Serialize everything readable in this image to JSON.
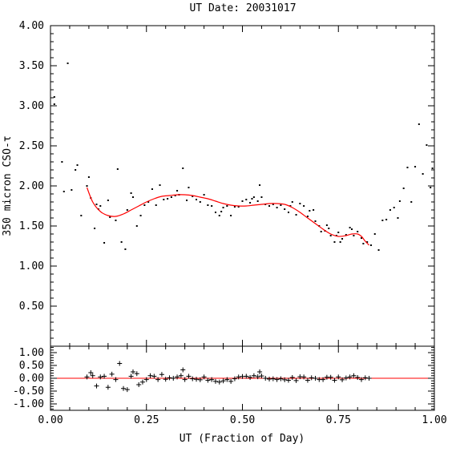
{
  "chart_data": [
    {
      "type": "scatter",
      "title": "UT Date: 20031017",
      "ylabel": "350 micron CSO-τ",
      "xlim": [
        0,
        1
      ],
      "ylim": [
        0,
        4
      ],
      "yticks": [
        "0.50",
        "1.00",
        "1.50",
        "2.00",
        "2.50",
        "3.00",
        "3.50",
        "4.00"
      ],
      "colors": {
        "points": "#000000",
        "fit": "#ff0000"
      },
      "points": [
        [
          0.01,
          3.11
        ],
        [
          0.01,
          3.02
        ],
        [
          0.03,
          2.3
        ],
        [
          0.035,
          1.93
        ],
        [
          0.045,
          3.53
        ],
        [
          0.055,
          1.95
        ],
        [
          0.065,
          2.2
        ],
        [
          0.07,
          2.26
        ],
        [
          0.08,
          1.63
        ],
        [
          0.095,
          2.0
        ],
        [
          0.1,
          2.11
        ],
        [
          0.105,
          1.85
        ],
        [
          0.115,
          1.47
        ],
        [
          0.12,
          1.77
        ],
        [
          0.125,
          1.71
        ],
        [
          0.13,
          1.75
        ],
        [
          0.14,
          1.29
        ],
        [
          0.15,
          1.82
        ],
        [
          0.155,
          1.61
        ],
        [
          0.17,
          1.57
        ],
        [
          0.175,
          2.21
        ],
        [
          0.185,
          1.3
        ],
        [
          0.195,
          1.21
        ],
        [
          0.2,
          1.7
        ],
        [
          0.21,
          1.91
        ],
        [
          0.215,
          1.86
        ],
        [
          0.225,
          1.5
        ],
        [
          0.235,
          1.63
        ],
        [
          0.245,
          1.76
        ],
        [
          0.255,
          1.8
        ],
        [
          0.265,
          1.96
        ],
        [
          0.275,
          1.76
        ],
        [
          0.285,
          2.01
        ],
        [
          0.295,
          1.83
        ],
        [
          0.305,
          1.84
        ],
        [
          0.315,
          1.86
        ],
        [
          0.325,
          1.88
        ],
        [
          0.33,
          1.94
        ],
        [
          0.335,
          1.89
        ],
        [
          0.345,
          2.22
        ],
        [
          0.355,
          1.82
        ],
        [
          0.36,
          1.98
        ],
        [
          0.37,
          1.87
        ],
        [
          0.38,
          1.83
        ],
        [
          0.39,
          1.8
        ],
        [
          0.4,
          1.89
        ],
        [
          0.41,
          1.76
        ],
        [
          0.42,
          1.75
        ],
        [
          0.43,
          1.67
        ],
        [
          0.44,
          1.63
        ],
        [
          0.445,
          1.68
        ],
        [
          0.45,
          1.73
        ],
        [
          0.46,
          1.75
        ],
        [
          0.47,
          1.63
        ],
        [
          0.48,
          1.74
        ],
        [
          0.49,
          1.74
        ],
        [
          0.5,
          1.81
        ],
        [
          0.51,
          1.83
        ],
        [
          0.52,
          1.79
        ],
        [
          0.525,
          1.84
        ],
        [
          0.53,
          1.86
        ],
        [
          0.54,
          1.81
        ],
        [
          0.545,
          2.01
        ],
        [
          0.55,
          1.86
        ],
        [
          0.56,
          1.77
        ],
        [
          0.57,
          1.75
        ],
        [
          0.58,
          1.77
        ],
        [
          0.59,
          1.73
        ],
        [
          0.6,
          1.76
        ],
        [
          0.61,
          1.71
        ],
        [
          0.62,
          1.67
        ],
        [
          0.625,
          1.75
        ],
        [
          0.63,
          1.8
        ],
        [
          0.64,
          1.64
        ],
        [
          0.65,
          1.78
        ],
        [
          0.66,
          1.75
        ],
        [
          0.67,
          1.62
        ],
        [
          0.675,
          1.69
        ],
        [
          0.685,
          1.7
        ],
        [
          0.69,
          1.56
        ],
        [
          0.7,
          1.5
        ],
        [
          0.705,
          1.43
        ],
        [
          0.715,
          1.44
        ],
        [
          0.72,
          1.51
        ],
        [
          0.725,
          1.47
        ],
        [
          0.73,
          1.38
        ],
        [
          0.74,
          1.3
        ],
        [
          0.745,
          1.38
        ],
        [
          0.75,
          1.42
        ],
        [
          0.755,
          1.3
        ],
        [
          0.76,
          1.34
        ],
        [
          0.77,
          1.39
        ],
        [
          0.78,
          1.48
        ],
        [
          0.785,
          1.46
        ],
        [
          0.79,
          1.38
        ],
        [
          0.8,
          1.43
        ],
        [
          0.81,
          1.35
        ],
        [
          0.815,
          1.28
        ],
        [
          0.825,
          1.3
        ],
        [
          0.835,
          1.26
        ],
        [
          0.845,
          1.4
        ],
        [
          0.855,
          1.2
        ],
        [
          0.865,
          1.57
        ],
        [
          0.875,
          1.58
        ],
        [
          0.885,
          1.7
        ],
        [
          0.895,
          1.73
        ],
        [
          0.905,
          1.6
        ],
        [
          0.91,
          1.81
        ],
        [
          0.92,
          1.97
        ],
        [
          0.93,
          2.23
        ],
        [
          0.94,
          1.8
        ],
        [
          0.95,
          2.24
        ],
        [
          0.96,
          2.77
        ],
        [
          0.97,
          2.15
        ],
        [
          0.98,
          2.51
        ],
        [
          0.99,
          1.98
        ],
        [
          0.995,
          2.22
        ]
      ],
      "fit": [
        [
          0.095,
          1.98
        ],
        [
          0.11,
          1.8
        ],
        [
          0.13,
          1.68
        ],
        [
          0.15,
          1.63
        ],
        [
          0.17,
          1.62
        ],
        [
          0.19,
          1.65
        ],
        [
          0.21,
          1.7
        ],
        [
          0.23,
          1.75
        ],
        [
          0.25,
          1.8
        ],
        [
          0.27,
          1.84
        ],
        [
          0.29,
          1.87
        ],
        [
          0.31,
          1.88
        ],
        [
          0.33,
          1.89
        ],
        [
          0.35,
          1.89
        ],
        [
          0.37,
          1.88
        ],
        [
          0.39,
          1.86
        ],
        [
          0.41,
          1.84
        ],
        [
          0.43,
          1.81
        ],
        [
          0.45,
          1.78
        ],
        [
          0.47,
          1.76
        ],
        [
          0.49,
          1.75
        ],
        [
          0.51,
          1.75
        ],
        [
          0.53,
          1.76
        ],
        [
          0.55,
          1.77
        ],
        [
          0.57,
          1.78
        ],
        [
          0.59,
          1.78
        ],
        [
          0.61,
          1.77
        ],
        [
          0.63,
          1.73
        ],
        [
          0.65,
          1.67
        ],
        [
          0.67,
          1.6
        ],
        [
          0.69,
          1.53
        ],
        [
          0.71,
          1.46
        ],
        [
          0.73,
          1.4
        ],
        [
          0.75,
          1.37
        ],
        [
          0.77,
          1.38
        ],
        [
          0.785,
          1.4
        ],
        [
          0.8,
          1.4
        ],
        [
          0.81,
          1.37
        ],
        [
          0.82,
          1.31
        ],
        [
          0.83,
          1.26
        ]
      ]
    },
    {
      "type": "scatter",
      "xlabel": "UT (Fraction of Day)",
      "xlim": [
        0,
        1
      ],
      "ylim": [
        -1.25,
        1.25
      ],
      "xticks": [
        "0.00",
        "0.25",
        "0.50",
        "0.75",
        "1.00"
      ],
      "yticks": [
        "-1.00",
        "-0.50",
        "0.00",
        "0.50",
        "1.00"
      ],
      "colors": {
        "points": "#000000",
        "zero_line": "#ff0000"
      },
      "residuals": [
        [
          0.095,
          0.05
        ],
        [
          0.105,
          0.22
        ],
        [
          0.11,
          0.1
        ],
        [
          0.12,
          -0.3
        ],
        [
          0.13,
          0.05
        ],
        [
          0.14,
          0.08
        ],
        [
          0.15,
          -0.35
        ],
        [
          0.16,
          0.16
        ],
        [
          0.17,
          -0.05
        ],
        [
          0.18,
          0.58
        ],
        [
          0.19,
          -0.4
        ],
        [
          0.2,
          -0.44
        ],
        [
          0.21,
          0.08
        ],
        [
          0.215,
          0.25
        ],
        [
          0.225,
          0.18
        ],
        [
          0.23,
          -0.25
        ],
        [
          0.24,
          -0.15
        ],
        [
          0.25,
          -0.05
        ],
        [
          0.26,
          0.1
        ],
        [
          0.27,
          0.08
        ],
        [
          0.28,
          -0.05
        ],
        [
          0.29,
          0.15
        ],
        [
          0.3,
          -0.04
        ],
        [
          0.31,
          0.02
        ],
        [
          0.32,
          0.0
        ],
        [
          0.33,
          0.05
        ],
        [
          0.34,
          0.1
        ],
        [
          0.345,
          0.33
        ],
        [
          0.35,
          -0.05
        ],
        [
          0.36,
          0.08
        ],
        [
          0.37,
          -0.02
        ],
        [
          0.38,
          -0.04
        ],
        [
          0.39,
          -0.06
        ],
        [
          0.4,
          0.05
        ],
        [
          0.41,
          -0.08
        ],
        [
          0.42,
          -0.05
        ],
        [
          0.43,
          -0.12
        ],
        [
          0.44,
          -0.15
        ],
        [
          0.45,
          -0.1
        ],
        [
          0.46,
          -0.05
        ],
        [
          0.47,
          -0.12
        ],
        [
          0.48,
          -0.02
        ],
        [
          0.49,
          0.05
        ],
        [
          0.5,
          0.07
        ],
        [
          0.51,
          0.08
        ],
        [
          0.52,
          0.03
        ],
        [
          0.53,
          0.1
        ],
        [
          0.54,
          0.06
        ],
        [
          0.545,
          0.25
        ],
        [
          0.55,
          0.09
        ],
        [
          0.56,
          0.0
        ],
        [
          0.57,
          -0.03
        ],
        [
          0.58,
          -0.02
        ],
        [
          0.59,
          -0.05
        ],
        [
          0.6,
          -0.02
        ],
        [
          0.61,
          -0.06
        ],
        [
          0.62,
          -0.08
        ],
        [
          0.63,
          0.03
        ],
        [
          0.64,
          -0.09
        ],
        [
          0.65,
          0.06
        ],
        [
          0.66,
          0.05
        ],
        [
          0.67,
          -0.08
        ],
        [
          0.68,
          0.02
        ],
        [
          0.69,
          0.0
        ],
        [
          0.7,
          -0.05
        ],
        [
          0.71,
          -0.05
        ],
        [
          0.72,
          0.04
        ],
        [
          0.73,
          0.04
        ],
        [
          0.74,
          -0.08
        ],
        [
          0.75,
          0.05
        ],
        [
          0.76,
          -0.06
        ],
        [
          0.77,
          0.01
        ],
        [
          0.78,
          0.05
        ],
        [
          0.79,
          0.1
        ],
        [
          0.8,
          0.03
        ],
        [
          0.81,
          -0.05
        ],
        [
          0.82,
          0.02
        ],
        [
          0.83,
          0.0
        ]
      ]
    }
  ]
}
